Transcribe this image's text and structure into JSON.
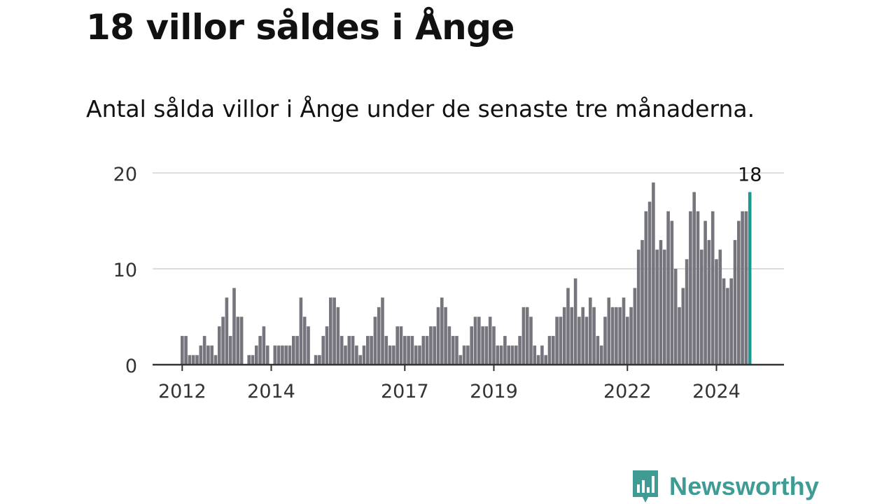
{
  "header": {
    "title": "18 villor såldes i Ånge",
    "subtitle": "Antal sålda villor i Ånge under de senaste tre månaderna."
  },
  "brand": {
    "name": "Newsworthy",
    "icon": "newsworthy-logo-icon",
    "color": "#3f9b94"
  },
  "chart_data": {
    "type": "bar",
    "title": "18 villor såldes i Ånge",
    "subtitle": "Antal sålda villor i Ånge under de senaste tre månaderna.",
    "xlabel": "",
    "ylabel": "",
    "ylim": [
      0,
      20
    ],
    "yticks": [
      0,
      10,
      20
    ],
    "grid": true,
    "x_start": "2012-01",
    "x_end": "2024-12",
    "xtick_labels": [
      "2012",
      "2014",
      "2017",
      "2019",
      "2022",
      "2024"
    ],
    "highlight_label": "18",
    "colors": {
      "bar": "#76757d",
      "highlight": "#1a9a93",
      "grid": "#dddddd",
      "axis": "#333333"
    },
    "values": [
      3,
      3,
      1,
      1,
      1,
      2,
      3,
      2,
      2,
      1,
      4,
      5,
      7,
      3,
      8,
      5,
      5,
      0,
      1,
      1,
      2,
      3,
      4,
      2,
      0,
      2,
      2,
      2,
      2,
      2,
      3,
      3,
      7,
      5,
      4,
      0,
      1,
      1,
      3,
      4,
      7,
      7,
      6,
      3,
      2,
      3,
      3,
      2,
      1,
      2,
      3,
      3,
      5,
      6,
      7,
      3,
      2,
      2,
      4,
      4,
      3,
      3,
      3,
      2,
      2,
      3,
      3,
      4,
      4,
      6,
      7,
      6,
      4,
      3,
      3,
      1,
      2,
      2,
      4,
      5,
      5,
      4,
      4,
      5,
      4,
      2,
      2,
      3,
      2,
      2,
      2,
      3,
      6,
      6,
      5,
      2,
      1,
      2,
      1,
      3,
      3,
      5,
      5,
      6,
      8,
      6,
      9,
      5,
      6,
      5,
      7,
      6,
      3,
      2,
      5,
      7,
      6,
      6,
      6,
      7,
      5,
      6,
      8,
      12,
      13,
      16,
      17,
      19,
      12,
      13,
      12,
      16,
      15,
      10,
      6,
      8,
      11,
      16,
      18,
      16,
      12,
      15,
      13,
      16,
      11,
      12,
      9,
      8,
      9,
      13,
      15,
      16,
      16,
      18
    ]
  }
}
